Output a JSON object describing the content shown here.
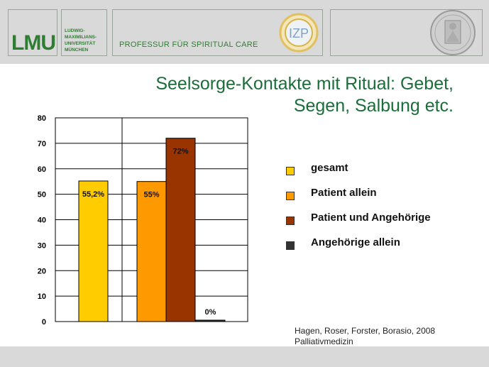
{
  "header": {
    "logo_text": "LMU",
    "university_lines": [
      "LUDWIG-",
      "MAXIMILIANS-",
      "UNIVERSITÄT",
      "MÜNCHEN"
    ],
    "department": "PROFESSUR FÜR SPIRITUAL CARE",
    "izp_logo": "IZP"
  },
  "colors": {
    "title": "#1b6e3a",
    "brand_green": "#2e7d32",
    "header_bg": "#d9d9d9"
  },
  "source": {
    "line1": "Hagen, Roser, Forster, Borasio, 2008",
    "line2": "Palliativmedizin"
  },
  "chart_data": {
    "type": "bar",
    "title": "Seelsorge-Kontakte mit Ritual: Gebet, Segen, Salbung etc.",
    "title_lines": [
      "Seelsorge-Kontakte mit Ritual: Gebet,",
      "Segen, Salbung etc."
    ],
    "ylim": [
      0,
      80
    ],
    "yticks": [
      0,
      10,
      20,
      30,
      40,
      50,
      60,
      70,
      80
    ],
    "grid": true,
    "legend_position": "right",
    "series": [
      {
        "name": "gesamt",
        "color": "#ffcc00",
        "value": 55.2,
        "label": "55,2%"
      },
      {
        "name": "Patient allein",
        "color": "#ff9900",
        "value": 55,
        "label": "55%"
      },
      {
        "name": "Patient und Angehörige",
        "color": "#993300",
        "value": 72,
        "label": "72%"
      },
      {
        "name": "Angehörige allein",
        "color": "#333333",
        "value": 0,
        "label": "0%"
      }
    ]
  }
}
